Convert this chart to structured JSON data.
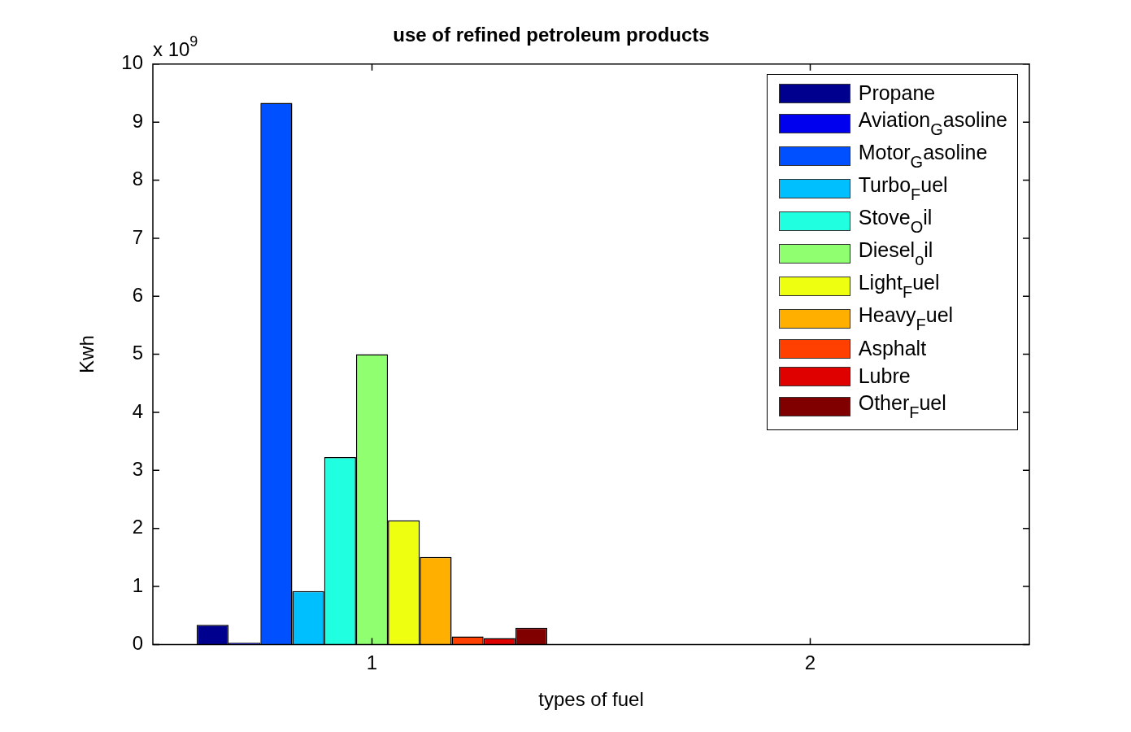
{
  "chart_data": {
    "type": "bar",
    "title": "use of refined petroleum products",
    "xlabel": "types of fuel",
    "ylabel": "Kwh",
    "annotations": [
      "x 10$^{9}$"
    ],
    "categories": [
      "1",
      "2"
    ],
    "ylim": [
      0,
      10
    ],
    "yticks": [
      0,
      1,
      2,
      3,
      4,
      5,
      6,
      7,
      8,
      9,
      10
    ],
    "grid": false,
    "legend": "top right",
    "series": [
      {
        "name": "Propane",
        "color": "#00008f",
        "values": [
          0.34,
          null
        ]
      },
      {
        "name": "Aviation$_{G}$asoline",
        "color": "#0000ef",
        "values": [
          0.03,
          null
        ]
      },
      {
        "name": "Motor$_{G}$asoline",
        "color": "#0050ff",
        "values": [
          9.33,
          null
        ]
      },
      {
        "name": "Turbo$_{F}$uel",
        "color": "#00bfff",
        "values": [
          0.92,
          null
        ]
      },
      {
        "name": "Stove$_{O}$il",
        "color": "#20ffdf",
        "values": [
          3.23,
          null
        ]
      },
      {
        "name": "Diesel$_{o}$il",
        "color": "#90ff70",
        "values": [
          5.0,
          null
        ]
      },
      {
        "name": "Light$_{F}$uel",
        "color": "#efff10",
        "values": [
          2.14,
          null
        ]
      },
      {
        "name": "Heavy$_{F}$uel",
        "color": "#ffaf00",
        "values": [
          1.51,
          null
        ]
      },
      {
        "name": "Asphalt",
        "color": "#ff4000",
        "values": [
          0.14,
          null
        ]
      },
      {
        "name": "Lubre",
        "color": "#df0000",
        "values": [
          0.11,
          null
        ]
      },
      {
        "name": "Other$_{F}$uel",
        "color": "#800000",
        "values": [
          0.29,
          null
        ]
      }
    ]
  }
}
